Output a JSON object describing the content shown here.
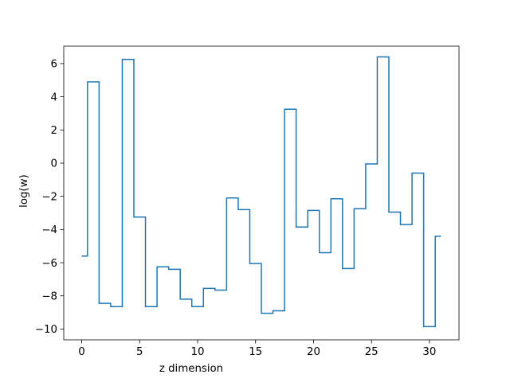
{
  "chart_data": {
    "type": "line",
    "drawstyle": "steps-mid",
    "xlabel": "z dimension",
    "ylabel": "log(w)",
    "xlim": [
      -1.55,
      32.55
    ],
    "ylim": [
      -10.65,
      7.05
    ],
    "xticks": [
      0,
      5,
      10,
      15,
      20,
      25,
      30
    ],
    "yticks": [
      -10,
      -8,
      -6,
      -4,
      -2,
      0,
      2,
      4,
      6
    ],
    "grid": false,
    "line_color": "#1f77b4",
    "x": [
      0,
      1,
      2,
      3,
      4,
      5,
      6,
      7,
      8,
      9,
      10,
      11,
      12,
      13,
      14,
      15,
      16,
      17,
      18,
      19,
      20,
      21,
      22,
      23,
      24,
      25,
      26,
      27,
      28,
      29,
      30,
      31
    ],
    "y": [
      -5.6,
      4.9,
      -8.45,
      -8.65,
      6.25,
      -3.25,
      -8.65,
      -6.25,
      -6.4,
      -8.2,
      -8.65,
      -7.55,
      -7.65,
      -2.1,
      -2.8,
      -6.05,
      -9.05,
      -8.9,
      3.25,
      -3.85,
      -2.85,
      -5.4,
      -2.15,
      -6.35,
      -2.75,
      -0.05,
      6.4,
      -2.95,
      -3.7,
      -0.6,
      -9.85,
      -4.4
    ]
  }
}
